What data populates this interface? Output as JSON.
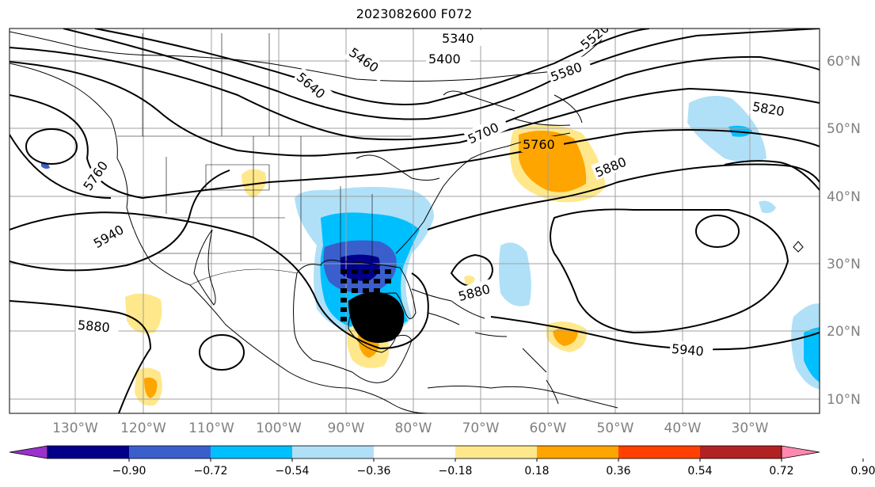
{
  "title": "2023082600 F072",
  "longitude_labels": [
    "130°W",
    "120°W",
    "110°W",
    "100°W",
    "90°W",
    "80°W",
    "70°W",
    "60°W",
    "50°W",
    "40°W",
    "30°W"
  ],
  "latitude_labels": [
    "60°N",
    "50°N",
    "40°N",
    "30°N",
    "20°N",
    "10°N"
  ],
  "contour_labels": [
    "5340",
    "5400",
    "5460",
    "5580",
    "5640",
    "5700",
    "5760",
    "5760",
    "5820",
    "5880",
    "5880",
    "5880",
    "5940",
    "5940",
    "5520"
  ],
  "colorbar": {
    "ticks": [
      "−0.90",
      "−0.72",
      "−0.54",
      "−0.36",
      "−0.18",
      "0.18",
      "0.36",
      "0.54",
      "0.72",
      "0.90"
    ],
    "colors": [
      "#9932cc",
      "#00008b",
      "#3a5fcd",
      "#00bfff",
      "#b0e0f8",
      "#ffffff",
      "#ffe88c",
      "#ffa500",
      "#ff4000",
      "#b22222",
      "#ff88b0"
    ],
    "extend": "both"
  },
  "colors": {
    "grid": "#a0a0a0",
    "tick_label": "#808080",
    "contour": "#000000",
    "coast": "#000000"
  }
}
